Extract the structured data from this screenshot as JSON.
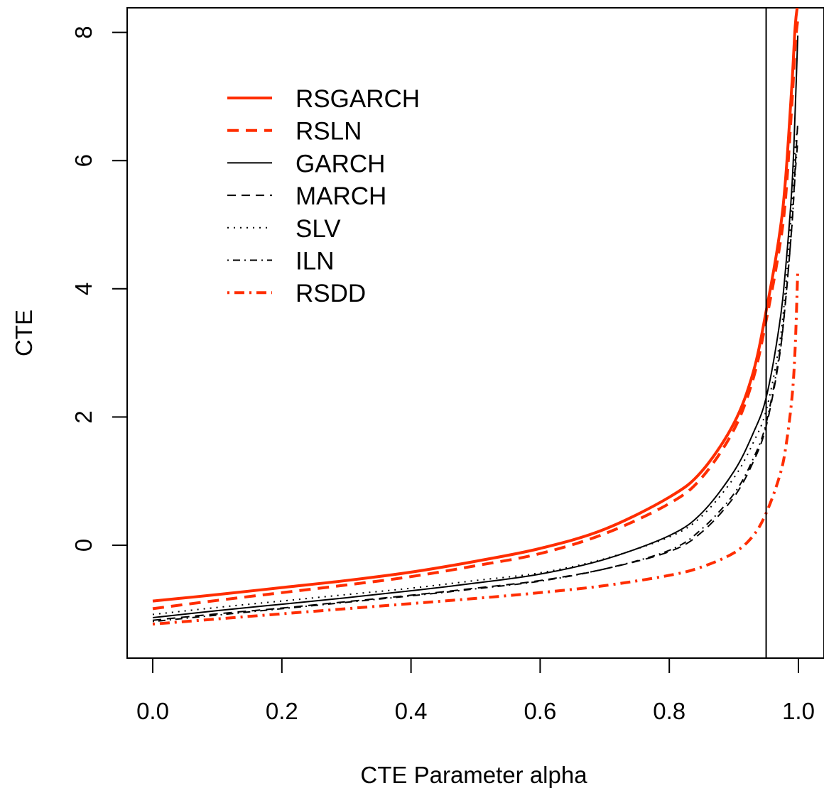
{
  "chart_data": {
    "type": "line",
    "title": "",
    "xlabel": "CTE Parameter alpha",
    "ylabel": "CTE",
    "xlim": [
      0,
      1
    ],
    "ylim": [
      -1.75,
      8.4
    ],
    "x_ticks": [
      "0.0",
      "0.2",
      "0.4",
      "0.6",
      "0.8",
      "1.0"
    ],
    "y_ticks": [
      "0",
      "2",
      "4",
      "6",
      "8"
    ],
    "vline": 0.95,
    "grid": false,
    "legend_position": "top-left",
    "x": [
      0.0,
      0.1,
      0.2,
      0.3,
      0.4,
      0.5,
      0.6,
      0.7,
      0.8,
      0.85,
      0.9,
      0.93,
      0.95,
      0.97,
      0.98,
      0.99,
      0.995,
      0.999
    ],
    "series": [
      {
        "name": "RSGARCH",
        "color": "#ff2d00",
        "style": "solid",
        "width": 4,
        "values": [
          -0.87,
          -0.77,
          -0.66,
          -0.55,
          -0.42,
          -0.25,
          -0.05,
          0.25,
          0.75,
          1.15,
          1.9,
          2.7,
          3.65,
          4.8,
          5.7,
          7.2,
          8.1,
          8.45
        ]
      },
      {
        "name": "RSLN",
        "color": "#ff2d00",
        "style": "dashed",
        "width": 4,
        "values": [
          -0.99,
          -0.86,
          -0.74,
          -0.62,
          -0.49,
          -0.32,
          -0.13,
          0.18,
          0.65,
          1.05,
          1.8,
          2.6,
          3.5,
          4.6,
          5.4,
          6.9,
          7.8,
          8.2
        ]
      },
      {
        "name": "GARCH",
        "color": "#000000",
        "style": "solid",
        "width": 2,
        "values": [
          -1.13,
          -1.02,
          -0.92,
          -0.82,
          -0.71,
          -0.59,
          -0.45,
          -0.22,
          0.15,
          0.5,
          1.15,
          1.75,
          2.3,
          3.4,
          4.3,
          5.6,
          6.8,
          7.95
        ]
      },
      {
        "name": "MARCH",
        "color": "#000000",
        "style": "dashed",
        "width": 2,
        "values": [
          -1.17,
          -1.07,
          -0.98,
          -0.88,
          -0.78,
          -0.67,
          -0.55,
          -0.37,
          -0.1,
          0.2,
          0.75,
          1.3,
          1.85,
          2.9,
          3.8,
          5.0,
          5.9,
          6.6
        ]
      },
      {
        "name": "SLV",
        "color": "#000000",
        "style": "dotted",
        "width": 2,
        "values": [
          -1.08,
          -0.97,
          -0.87,
          -0.77,
          -0.67,
          -0.55,
          -0.43,
          -0.21,
          0.13,
          0.45,
          1.05,
          1.6,
          2.1,
          3.1,
          4.0,
          5.3,
          6.2,
          6.5
        ]
      },
      {
        "name": "ILN",
        "color": "#000000",
        "style": "dotdash",
        "width": 2,
        "values": [
          -1.19,
          -1.09,
          -0.99,
          -0.89,
          -0.79,
          -0.68,
          -0.56,
          -0.37,
          -0.08,
          0.25,
          0.8,
          1.35,
          1.9,
          2.95,
          3.8,
          5.0,
          5.8,
          6.3
        ]
      },
      {
        "name": "RSDD",
        "color": "#ff2d00",
        "style": "dotdash",
        "width": 4,
        "values": [
          -1.23,
          -1.15,
          -1.07,
          -0.99,
          -0.91,
          -0.83,
          -0.74,
          -0.63,
          -0.47,
          -0.34,
          -0.12,
          0.15,
          0.5,
          1.05,
          1.5,
          2.3,
          3.1,
          4.3
        ]
      }
    ]
  }
}
